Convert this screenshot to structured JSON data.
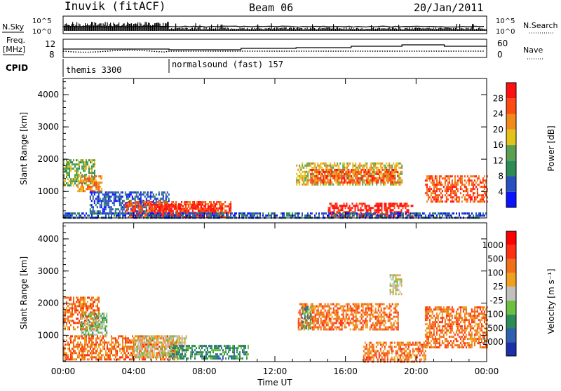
{
  "header": {
    "station": "Inuvik (fitACF)",
    "beam": "Beam 06",
    "date": "20/Jan/2011"
  },
  "sky_panel": {
    "left_label": "N.Sky",
    "left_ticks": [
      "10^5",
      "10^0"
    ],
    "right_label": "N.Search",
    "right_ticks": [
      "10^5",
      "10^0"
    ]
  },
  "freq_panel": {
    "left_label_line1": "Freq.",
    "left_label_line2": "[MHz]",
    "left_ticks": [
      "12",
      "8"
    ],
    "right_label": "Nave",
    "right_ticks": [
      "60",
      "0"
    ]
  },
  "cpid": {
    "label": "CPID",
    "segments": [
      {
        "name": "themis 3300"
      },
      {
        "name": "normalsound (fast) 157"
      }
    ]
  },
  "chart_data": [
    {
      "type": "heatmap",
      "panel": "power",
      "ylabel": "Slant Range [km]",
      "xlabel": "Time UT",
      "x_ticks": [
        "00:00",
        "04:00",
        "08:00",
        "12:00",
        "16:00",
        "20:00",
        "00:00"
      ],
      "y_ticks": [
        "1000",
        "2000",
        "3000",
        "4000"
      ],
      "ylim": [
        180,
        4500
      ],
      "xlim_hours": [
        0,
        24
      ],
      "colorbar_label": "Power [dB]",
      "colorbar_ticks": [
        "28",
        "24",
        "20",
        "16",
        "12",
        "8",
        "4"
      ],
      "colorbar_colors": [
        "#0a14ff",
        "#2a50c0",
        "#2d8c55",
        "#5aa050",
        "#e3c21a",
        "#f08a18",
        "#ff4a10",
        "#ff1010"
      ],
      "echo_regions": [
        {
          "t0": 0.0,
          "t1": 1.8,
          "r0": 1200,
          "r1": 2000,
          "level": 3
        },
        {
          "t0": 0.8,
          "t1": 2.2,
          "r0": 1000,
          "r1": 1500,
          "level": 5
        },
        {
          "t0": 1.5,
          "t1": 6.0,
          "r0": 300,
          "r1": 1000,
          "level": 1
        },
        {
          "t0": 3.5,
          "t1": 9.5,
          "r0": 200,
          "r1": 700,
          "level": 6
        },
        {
          "t0": 5.0,
          "t1": 8.5,
          "r0": 220,
          "r1": 620,
          "level": 7
        },
        {
          "t0": 13.2,
          "t1": 19.2,
          "r0": 1200,
          "r1": 1900,
          "level": 4
        },
        {
          "t0": 14.0,
          "t1": 19.0,
          "r0": 1300,
          "r1": 1700,
          "level": 6
        },
        {
          "t0": 15.0,
          "t1": 19.8,
          "r0": 200,
          "r1": 650,
          "level": 7
        },
        {
          "t0": 20.5,
          "t1": 24.0,
          "r0": 700,
          "r1": 1500,
          "level": 6
        },
        {
          "t0": 0.0,
          "t1": 24.0,
          "r0": 180,
          "r1": 350,
          "level": 1
        }
      ]
    },
    {
      "type": "heatmap",
      "panel": "velocity",
      "ylabel": "Slant Range [km]",
      "xlabel": "Time UT",
      "x_ticks": [
        "00:00",
        "04:00",
        "08:00",
        "12:00",
        "16:00",
        "20:00",
        "00:00"
      ],
      "y_ticks": [
        "1000",
        "2000",
        "3000",
        "4000"
      ],
      "ylim": [
        180,
        4500
      ],
      "xlim_hours": [
        0,
        24
      ],
      "colorbar_label": "Velocity [m s⁻¹]",
      "colorbar_ticks": [
        "1000",
        "500",
        "100",
        "25",
        "-25",
        "-100",
        "-500",
        "-1000"
      ],
      "colorbar_colors": [
        "#1a2fa8",
        "#2f5fb0",
        "#2d8c55",
        "#6cc040",
        "#c0c0c0",
        "#f0a020",
        "#f07018",
        "#ff3010",
        "#ff0000"
      ],
      "echo_regions": [
        {
          "t0": 0.0,
          "t1": 2.0,
          "r0": 1200,
          "r1": 2200,
          "level": 6
        },
        {
          "t0": 1.0,
          "t1": 2.5,
          "r0": 1000,
          "r1": 1700,
          "level": 3
        },
        {
          "t0": 0.0,
          "t1": 6.5,
          "r0": 250,
          "r1": 1000,
          "level": 6
        },
        {
          "t0": 4.0,
          "t1": 7.0,
          "r0": 300,
          "r1": 1000,
          "level": 4
        },
        {
          "t0": 6.0,
          "t1": 10.5,
          "r0": 250,
          "r1": 700,
          "level": 2
        },
        {
          "t0": 13.3,
          "t1": 19.0,
          "r0": 1200,
          "r1": 2000,
          "level": 6
        },
        {
          "t0": 13.5,
          "t1": 14.0,
          "r0": 1200,
          "r1": 1900,
          "level": 2
        },
        {
          "t0": 17.0,
          "t1": 20.5,
          "r0": 200,
          "r1": 800,
          "level": 6
        },
        {
          "t0": 20.5,
          "t1": 24.0,
          "r0": 600,
          "r1": 1900,
          "level": 6
        },
        {
          "t0": 18.5,
          "t1": 19.2,
          "r0": 2300,
          "r1": 2900,
          "level": 4
        }
      ]
    }
  ]
}
